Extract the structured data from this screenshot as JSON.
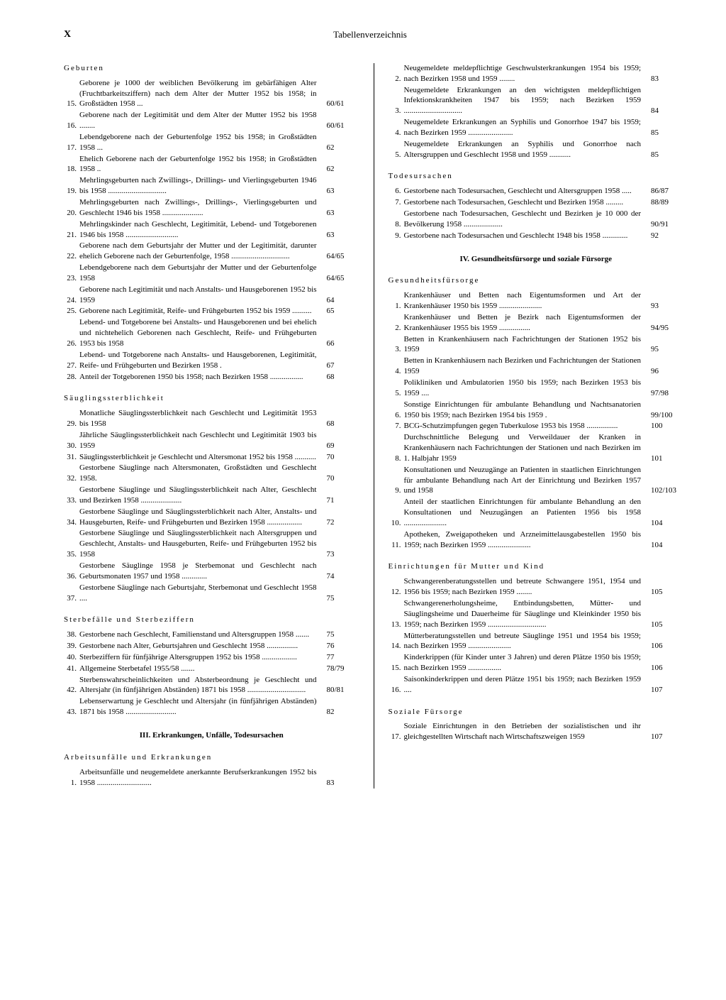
{
  "pageNumber": "X",
  "pageTitle": "Tabellenverzeichnis",
  "left": {
    "sections": [
      {
        "heading": "Geburten",
        "entries": [
          {
            "n": "15.",
            "t": "Geborene je 1000 der weiblichen Bevölkerung im gebärfähigen Alter (Fruchtbarkeitsziffern) nach dem Alter der Mutter 1952 bis 1958; in Großstädten 1958 ...",
            "p": "60/61"
          },
          {
            "n": "16.",
            "t": "Geborene nach der Legitimität und dem Alter der Mutter 1952 bis 1958 ........",
            "p": "60/61"
          },
          {
            "n": "17.",
            "t": "Lebendgeborene nach der Geburtenfolge 1952 bis 1958; in Großstädten 1958 ...",
            "p": "62"
          },
          {
            "n": "18.",
            "t": "Ehelich Geborene nach der Geburtenfolge 1952 bis 1958; in Großstädten 1958 ..",
            "p": "62"
          },
          {
            "n": "19.",
            "t": "Mehrlingsgeburten nach Zwillings-, Drillings- und Vierlingsgeburten 1946 bis 1958 ..............................",
            "p": "63"
          },
          {
            "n": "20.",
            "t": "Mehrlingsgeburten nach Zwillings-, Drillings-, Vierlingsgeburten und Geschlecht 1946 bis 1958 .....................",
            "p": "63"
          },
          {
            "n": "21.",
            "t": "Mehrlingskinder nach Geschlecht, Legitimität, Lebend- und Totgeborenen 1946 bis 1958 ...........................",
            "p": "63"
          },
          {
            "n": "22.",
            "t": "Geborene nach dem Geburtsjahr der Mutter und der Legitimität, darunter ehelich Geborene nach der Geburtenfolge, 1958 ..............................",
            "p": "64/65"
          },
          {
            "n": "23.",
            "t": "Lebendgeborene nach dem Geburtsjahr der Mutter und der Geburtenfolge 1958",
            "p": "64/65"
          },
          {
            "n": "24.",
            "t": "Geborene nach Legitimität und nach Anstalts- und Hausgeborenen 1952 bis 1959",
            "p": "64"
          },
          {
            "n": "25.",
            "t": "Geborene nach Legitimität, Reife- und Frühgeburten 1952 bis 1959 ..........",
            "p": "65"
          },
          {
            "n": "26.",
            "t": "Lebend- und Totgeborene bei Anstalts- und Hausgeborenen und bei ehelich und nichtehelich Geborenen nach Geschlecht, Reife- und Frühgeburten 1953 bis 1958",
            "p": "66"
          },
          {
            "n": "27.",
            "t": "Lebend- und Totgeborene nach Anstalts- und Hausgeborenen, Legitimität, Reife- und Frühgeburten und Bezirken 1958 .",
            "p": "67"
          },
          {
            "n": "28.",
            "t": "Anteil der Totgeborenen 1950 bis 1958; nach Bezirken 1958 .................",
            "p": "68"
          }
        ]
      },
      {
        "heading": "Säuglingssterblichkeit",
        "entries": [
          {
            "n": "29.",
            "t": "Monatliche Säuglingssterblichkeit nach Geschlecht und Legitimität 1953 bis 1958",
            "p": "68"
          },
          {
            "n": "30.",
            "t": "Jährliche Säuglingssterblichkeit nach Geschlecht und Legitimität 1903 bis 1959",
            "p": "69"
          },
          {
            "n": "31.",
            "t": "Säuglingssterblichkeit je Geschlecht und Altersmonat 1952 bis 1958 ...........",
            "p": "70"
          },
          {
            "n": "32.",
            "t": "Gestorbene Säuglinge nach Altersmonaten, Großstädten und Geschlecht 1958.",
            "p": "70"
          },
          {
            "n": "33.",
            "t": "Gestorbene Säuglinge und Säuglingssterblichkeit nach Alter, Geschlecht und Bezirken 1958 .....................",
            "p": "71"
          },
          {
            "n": "34.",
            "t": "Gestorbene Säuglinge und Säuglingssterblichkeit nach Alter, Anstalts- und Hausgeburten, Reife- und Frühgeburten und Bezirken 1958 ..................",
            "p": "72"
          },
          {
            "n": "35.",
            "t": "Gestorbene Säuglinge und Säuglingssterblichkeit nach Altersgruppen und Geschlecht, Anstalts- und Hausgeburten, Reife- und Frühgeburten 1952 bis 1958",
            "p": "73"
          },
          {
            "n": "36.",
            "t": "Gestorbene Säuglinge 1958 je Sterbemonat und Geschlecht nach Geburtsmonaten 1957 und 1958 .............",
            "p": "74"
          },
          {
            "n": "37.",
            "t": "Gestorbene Säuglinge nach Geburtsjahr, Sterbemonat und Geschlecht 1958 ....",
            "p": "75"
          }
        ]
      },
      {
        "heading": "Sterbefälle und Sterbeziffern",
        "entries": [
          {
            "n": "38.",
            "t": "Gestorbene nach Geschlecht, Familienstand und Altersgruppen 1958 .......",
            "p": "75"
          },
          {
            "n": "39.",
            "t": "Gestorbene nach Alter, Geburtsjahren und Geschlecht 1958 ................",
            "p": "76"
          },
          {
            "n": "40.",
            "t": "Sterbeziffern für fünfjährige Altersgruppen 1952 bis 1958 ..................",
            "p": "77"
          },
          {
            "n": "41.",
            "t": "Allgemeine Sterbetafel 1955/58 .......",
            "p": "78/79"
          },
          {
            "n": "42.",
            "t": "Sterbenswahrscheinlichkeiten und Absterbeordnung je Geschlecht und Altersjahr (in fünfjährigen Abständen) 1871 bis 1958 ..............................",
            "p": "80/81"
          },
          {
            "n": "43.",
            "t": "Lebenserwartung je Geschlecht und Altersjahr (in fünfjährigen Abständen) 1871 bis 1958 ..........................",
            "p": "82"
          }
        ]
      }
    ],
    "centerHead": "III. Erkrankungen, Unfälle, Todesursachen",
    "afterCenter": [
      {
        "heading": "Arbeitsunfälle und Erkrankungen",
        "entries": [
          {
            "n": "1.",
            "t": "Arbeitsunfälle und neugemeldete anerkannte Berufserkrankungen 1952 bis 1958 ............................",
            "p": "83"
          }
        ]
      }
    ]
  },
  "right": {
    "topEntries": [
      {
        "n": "2.",
        "t": "Neugemeldete meldepflichtige Geschwulsterkrankungen 1954 bis 1959; nach Bezirken 1958 und 1959 ........",
        "p": "83"
      },
      {
        "n": "3.",
        "t": "Neugemeldete Erkrankungen an den wichtigsten meldepflichtigen Infektionskrankheiten 1947 bis 1959; nach Bezirken 1959 ..............................",
        "p": "84"
      },
      {
        "n": "4.",
        "t": "Neugemeldete Erkrankungen an Syphilis und Gonorrhoe 1947 bis 1959; nach Bezirken 1959 .......................",
        "p": "85"
      },
      {
        "n": "5.",
        "t": "Neugemeldete Erkrankungen an Syphilis und Gonorrhoe nach Altersgruppen und Geschlecht 1958 und 1959 ...........",
        "p": "85"
      }
    ],
    "sections": [
      {
        "heading": "Todesursachen",
        "entries": [
          {
            "n": "6.",
            "t": "Gestorbene nach Todesursachen, Geschlecht und Altersgruppen 1958 .....",
            "p": "86/87"
          },
          {
            "n": "7.",
            "t": "Gestorbene nach Todesursachen, Geschlecht und Bezirken 1958 .........",
            "p": "88/89"
          },
          {
            "n": "8.",
            "t": "Gestorbene nach Todesursachen, Geschlecht und Bezirken je 10 000 der Bevölkerung 1958 ....................",
            "p": "90/91"
          },
          {
            "n": "9.",
            "t": "Gestorbene nach Todesursachen und Geschlecht 1948 bis 1958 .............",
            "p": "92"
          }
        ]
      }
    ],
    "centerHead": "IV. Gesundheitsfürsorge und soziale Fürsorge",
    "afterCenter": [
      {
        "heading": "Gesundheitsfürsorge",
        "entries": [
          {
            "n": "1.",
            "t": "Krankenhäuser und Betten nach Eigentumsformen und Art der Krankenhäuser 1950 bis 1959 ......................",
            "p": "93"
          },
          {
            "n": "2.",
            "t": "Krankenhäuser und Betten je Bezirk nach Eigentumsformen der Krankenhäuser 1955 bis 1959 ................",
            "p": "94/95"
          },
          {
            "n": "3.",
            "t": "Betten in Krankenhäusern nach Fachrichtungen der Stationen 1952 bis 1959",
            "p": "95"
          },
          {
            "n": "4.",
            "t": "Betten in Krankenhäusern nach Bezirken und Fachrichtungen der Stationen 1959",
            "p": "96"
          },
          {
            "n": "5.",
            "t": "Polikliniken und Ambulatorien 1950 bis 1959; nach Bezirken 1953 bis 1959 ....",
            "p": "97/98"
          },
          {
            "n": "6.",
            "t": "Sonstige Einrichtungen für ambulante Behandlung und Nachtsanatorien 1950 bis 1959; nach Bezirken 1954 bis 1959 .",
            "p": "99/100"
          },
          {
            "n": "7.",
            "t": "BCG-Schutzimpfungen gegen Tuberkulose 1953 bis 1958 ................",
            "p": "100"
          },
          {
            "n": "8.",
            "t": "Durchschnittliche Belegung und Verweildauer der Kranken in Krankenhäusern nach Fachrichtungen der Stationen und nach Bezirken im 1. Halbjahr 1959",
            "p": "101"
          },
          {
            "n": "9.",
            "t": "Konsultationen und Neuzugänge an Patienten in staatlichen Einrichtungen für ambulante Behandlung nach Art der Einrichtung und Bezirken 1957 und 1958",
            "p": "102/103"
          },
          {
            "n": "10.",
            "t": "Anteil der staatlichen Einrichtungen für ambulante Behandlung an den Konsultationen und Neuzugängen an Patienten 1956 bis 1958 ......................",
            "p": "104"
          },
          {
            "n": "11.",
            "t": "Apotheken, Zweigapotheken und Arzneimittelausgabestellen 1950 bis 1959; nach Bezirken 1959 ......................",
            "p": "104"
          }
        ]
      },
      {
        "heading": "Einrichtungen für Mutter und Kind",
        "entries": [
          {
            "n": "12.",
            "t": "Schwangerenberatungsstellen und betreute Schwangere 1951, 1954 und 1956 bis 1959; nach Bezirken 1959 ........",
            "p": "105"
          },
          {
            "n": "13.",
            "t": "Schwangerenerholungsheime, Entbindungsbetten, Mütter- und Säuglingsheime und Dauerheime für Säuglinge und Kleinkinder 1950 bis 1959; nach Bezirken 1959 ..............................",
            "p": "105"
          },
          {
            "n": "14.",
            "t": "Mütterberatungsstellen und betreute Säuglinge 1951 und 1954 bis 1959; nach Bezirken 1959 ......................",
            "p": "106"
          },
          {
            "n": "15.",
            "t": "Kinderkrippen (für Kinder unter 3 Jahren) und deren Plätze 1950 bis 1959; nach Bezirken 1959 .................",
            "p": "106"
          },
          {
            "n": "16.",
            "t": "Saisonkinderkrippen und deren Plätze 1951 bis 1959; nach Bezirken 1959 ....",
            "p": "107"
          }
        ]
      },
      {
        "heading": "Soziale Fürsorge",
        "entries": [
          {
            "n": "17.",
            "t": "Soziale Einrichtungen in den Betrieben der sozialistischen und ihr gleichgestellten Wirtschaft nach Wirtschaftszweigen 1959",
            "p": "107"
          }
        ]
      }
    ]
  }
}
